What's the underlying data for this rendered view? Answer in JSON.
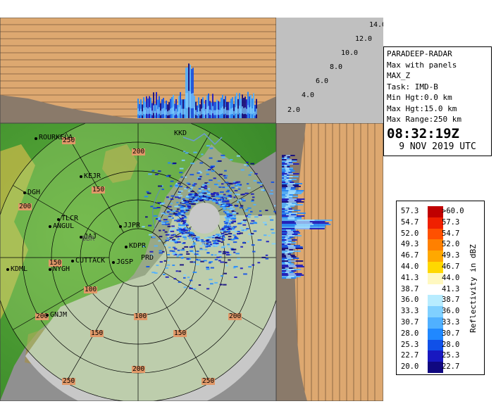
{
  "station": {
    "name": "PARADEEP-RADAR",
    "product": "Max with panels",
    "variable": "MAX_Z",
    "task": "Task: IMD-B",
    "min_hgt": "Min Hgt:0.0 km",
    "max_hgt": "Max Hgt:15.0 km",
    "max_range": "Max Range:250 km",
    "time": "08:32:19Z",
    "date": "9 NOV 2019 UTC"
  },
  "height_axis_labels": [
    "2.0",
    "4.0",
    "6.0",
    "8.0",
    "10.0",
    "12.0",
    "14.0"
  ],
  "legend": {
    "title": "Reflectivity in dBZ",
    "rows": [
      {
        "lo": "57.3",
        "hi": ">60.0",
        "color": "#c00000"
      },
      {
        "lo": "54.7",
        "hi": "57.3",
        "color": "#f02000"
      },
      {
        "lo": "52.0",
        "hi": "54.7",
        "color": "#ff5000"
      },
      {
        "lo": "49.3",
        "hi": "52.0",
        "color": "#ff8000"
      },
      {
        "lo": "46.7",
        "hi": "49.3",
        "color": "#ffa800"
      },
      {
        "lo": "44.0",
        "hi": "46.7",
        "color": "#ffd800"
      },
      {
        "lo": "41.3",
        "hi": "44.0",
        "color": "#fff8c0"
      },
      {
        "lo": "38.7",
        "hi": "41.3",
        "color": "#ffffff"
      },
      {
        "lo": "36.0",
        "hi": "38.7",
        "color": "#b8ecff"
      },
      {
        "lo": "33.3",
        "hi": "36.0",
        "color": "#80d0ff"
      },
      {
        "lo": "30.7",
        "hi": "33.3",
        "color": "#50b0ff"
      },
      {
        "lo": "28.0",
        "hi": "30.7",
        "color": "#2088ff"
      },
      {
        "lo": "25.3",
        "hi": "28.0",
        "color": "#1050e8"
      },
      {
        "lo": "22.7",
        "hi": "25.3",
        "color": "#1818c0"
      },
      {
        "lo": "20.0",
        "hi": "22.7",
        "color": "#100880"
      }
    ]
  },
  "ring_labels": [
    "50",
    "100",
    "150",
    "200",
    "250"
  ],
  "cities": [
    {
      "name": "ROURKELA"
    },
    {
      "name": "KKD"
    },
    {
      "name": "KEJR"
    },
    {
      "name": "DGH"
    },
    {
      "name": "TLCR"
    },
    {
      "name": "ANGUL"
    },
    {
      "name": "JAJ"
    },
    {
      "name": "JJPR"
    },
    {
      "name": "KDPR"
    },
    {
      "name": "CUTTACK"
    },
    {
      "name": "JGSP"
    },
    {
      "name": "PRD"
    },
    {
      "name": "KDML"
    },
    {
      "name": "NYGH"
    },
    {
      "name": "GNJM"
    },
    {
      "name": "BBR"
    }
  ]
}
